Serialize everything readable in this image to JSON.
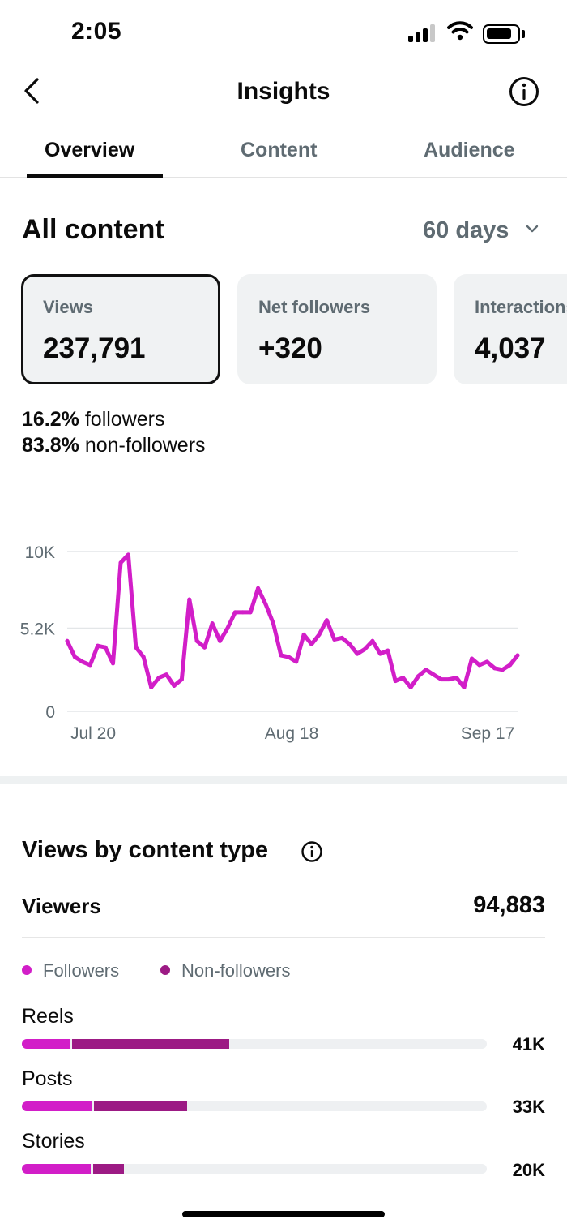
{
  "status": {
    "time": "2:05"
  },
  "header": {
    "title": "Insights"
  },
  "tabs": [
    {
      "label": "Overview"
    },
    {
      "label": "Content"
    },
    {
      "label": "Audience"
    }
  ],
  "section": {
    "title": "All content",
    "range": "60 days"
  },
  "cards": [
    {
      "label": "Views",
      "value": "237,791"
    },
    {
      "label": "Net followers",
      "value": "+320"
    },
    {
      "label": "Interactions",
      "value": "4,037"
    }
  ],
  "split": {
    "followers_pct": "16.2%",
    "followers_text": "followers",
    "nonfollowers_pct": "83.8%",
    "nonfollowers_text": "non-followers"
  },
  "chart_data": {
    "type": "line",
    "y_ticks": [
      "10K",
      "5.2K",
      "0"
    ],
    "x_ticks": [
      "Jul 20",
      "Aug 18",
      "Sep 17"
    ],
    "ylim": [
      0,
      10000
    ],
    "grid": true,
    "color": "#d21ec8",
    "values": [
      4400,
      3400,
      3100,
      2900,
      4100,
      4000,
      3000,
      9300,
      9800,
      4000,
      3400,
      1500,
      2100,
      2300,
      1600,
      2000,
      7000,
      4400,
      4000,
      5500,
      4400,
      5200,
      6200,
      6200,
      6200,
      7700,
      6700,
      5500,
      3500,
      3400,
      3100,
      4800,
      4200,
      4800,
      5700,
      4500,
      4600,
      4200,
      3600,
      3900,
      4400,
      3600,
      3800,
      1900,
      2100,
      1500,
      2200,
      2600,
      2300,
      2000,
      2000,
      2100,
      1500,
      3300,
      2900,
      3100,
      2700,
      2600,
      2900,
      3500
    ]
  },
  "content_type": {
    "title": "Views by content type",
    "viewers_label": "Viewers",
    "viewers_value": "94,883",
    "legend": [
      {
        "label": "Followers",
        "color": "#d21ec8"
      },
      {
        "label": "Non-followers",
        "color": "#9c1a84"
      }
    ],
    "rows": [
      {
        "label": "Reels",
        "value": "41K",
        "followers": 10.2,
        "nonfollowers": 33.8
      },
      {
        "label": "Posts",
        "value": "33K",
        "followers": 15.0,
        "nonfollowers": 20.0
      },
      {
        "label": "Stories",
        "value": "20K",
        "followers": 14.8,
        "nonfollowers": 6.6
      }
    ]
  }
}
